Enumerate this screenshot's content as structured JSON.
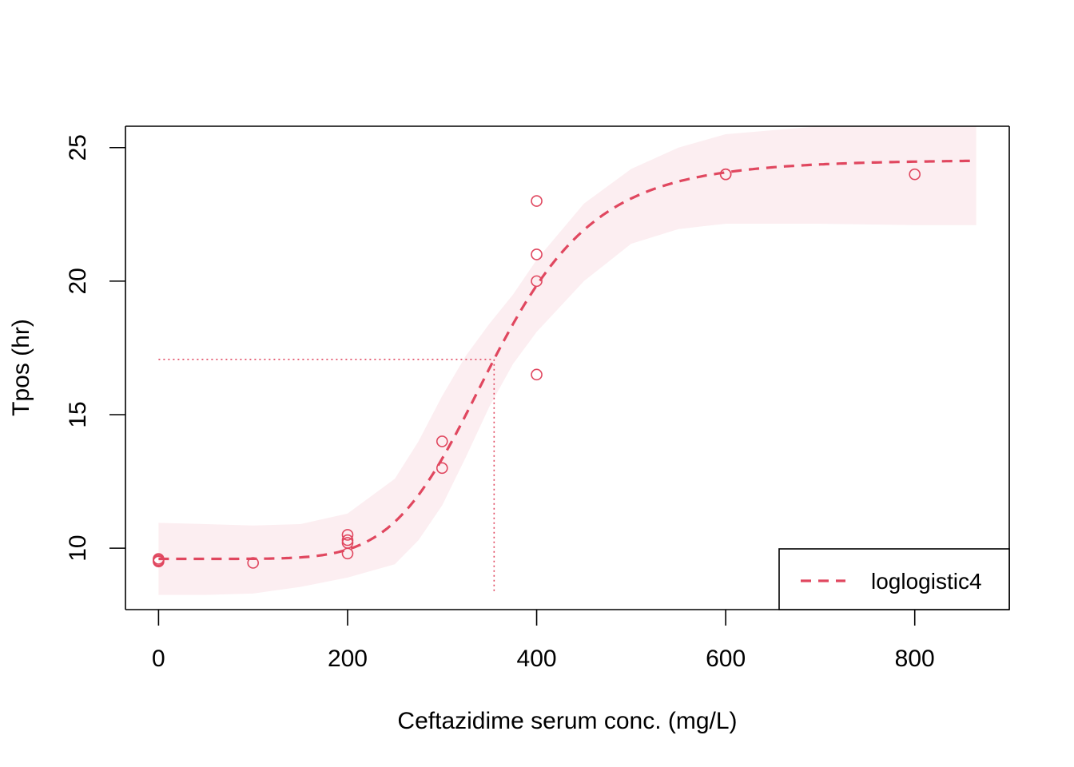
{
  "chart_data": {
    "type": "scatter",
    "title": "",
    "xlabel": "Ceftazidime serum conc. (mg/L)",
    "ylabel": "Tpos (hr)",
    "xlim": [
      -35,
      900
    ],
    "ylim": [
      7.7,
      25.8
    ],
    "x_ticks": [
      0,
      200,
      400,
      600,
      800
    ],
    "x_tick_labels": [
      "0",
      "200",
      "400",
      "600",
      "800"
    ],
    "y_ticks": [
      10,
      15,
      20,
      25
    ],
    "y_tick_labels": [
      "10",
      "15",
      "20",
      "25"
    ],
    "grid": false,
    "colors": {
      "series": "#E0475F",
      "band": "#FCEEF1",
      "axis": "#000000"
    },
    "points": [
      {
        "x": 0,
        "y": 9.5
      },
      {
        "x": 0,
        "y": 9.55
      },
      {
        "x": 0,
        "y": 9.6
      },
      {
        "x": 100,
        "y": 9.45
      },
      {
        "x": 200,
        "y": 9.8
      },
      {
        "x": 200,
        "y": 10.2
      },
      {
        "x": 200,
        "y": 10.3
      },
      {
        "x": 200,
        "y": 10.5
      },
      {
        "x": 300,
        "y": 13.0
      },
      {
        "x": 300,
        "y": 14.0
      },
      {
        "x": 400,
        "y": 16.5
      },
      {
        "x": 400,
        "y": 20.0
      },
      {
        "x": 400,
        "y": 21.0
      },
      {
        "x": 400,
        "y": 23.0
      },
      {
        "x": 600,
        "y": 24.0
      },
      {
        "x": 600,
        "y": 24.0
      },
      {
        "x": 800,
        "y": 24.0
      }
    ],
    "fit": {
      "name": "loglogistic4",
      "model": "loglogistic4",
      "b": 6.5,
      "c": 9.6,
      "d": 24.55,
      "e": 355,
      "x_range": [
        0,
        865
      ],
      "line_style": "dashed"
    },
    "confidence_band": {
      "x": [
        0,
        50,
        100,
        150,
        200,
        250,
        275,
        300,
        325,
        350,
        375,
        400,
        450,
        500,
        550,
        600,
        700,
        800,
        865
      ],
      "lower": [
        8.25,
        8.25,
        8.3,
        8.55,
        8.9,
        9.4,
        10.3,
        11.6,
        13.4,
        15.3,
        16.9,
        18.1,
        20.0,
        21.4,
        21.95,
        22.15,
        22.15,
        22.1,
        22.1
      ],
      "upper": [
        10.95,
        10.9,
        10.85,
        10.9,
        11.3,
        12.6,
        14.0,
        15.7,
        17.2,
        18.4,
        19.5,
        20.8,
        22.9,
        24.2,
        25.0,
        25.5,
        25.8,
        25.8,
        25.8
      ]
    },
    "ed50_marker": {
      "x": 355,
      "y": 17.07,
      "style": "dotted"
    },
    "legend": {
      "placement": "bottom-right",
      "entries": [
        {
          "label": "loglogistic4",
          "style": "dashed"
        }
      ]
    }
  }
}
